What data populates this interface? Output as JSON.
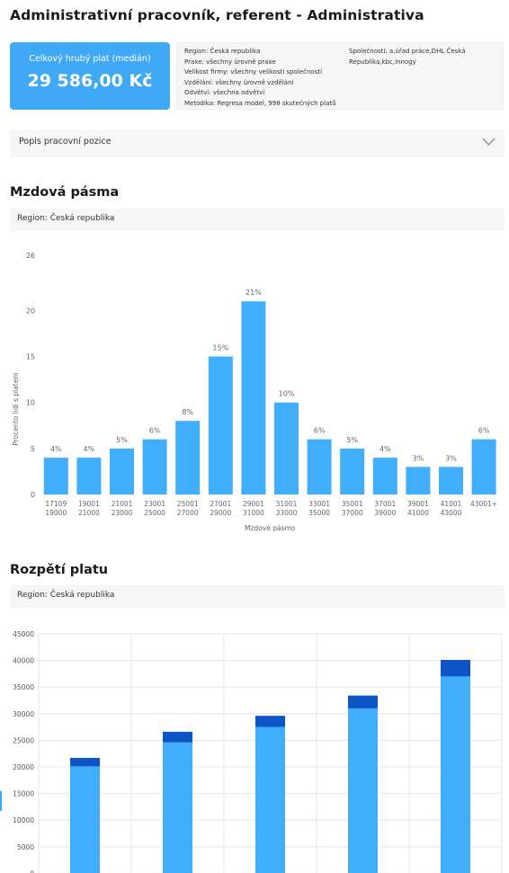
{
  "page": {
    "title": "Administrativní pracovník, referent - Administrativa"
  },
  "summary": {
    "median_label": "Celkový hrubý plat (medián)",
    "median_value": "29 586,00 Kč",
    "details_left": [
      "Region: Česká republika",
      "Praxe: všechny úrovně praxe",
      "Velikost firmy: všechny velikosti společností",
      "Vzdělání: všechny úrovně vzdělání",
      "Odvětví: všechna odvětví",
      "Metodika: Regresa model, 998 skutečných platů"
    ],
    "details_right": [
      "Společnosti: a,úřad práce,DHL Česká",
      "Republika,kbc,innogy"
    ]
  },
  "job_description": {
    "label": "Popis pracovní pozice",
    "icon": "chevron-down-icon"
  },
  "wage_bands": {
    "section_title": "Mzdová pásma",
    "region": "Region: Česká republika"
  },
  "salary_range": {
    "section_title": "Rozpětí platu",
    "region": "Region: Česká republika"
  },
  "colors": {
    "bar": "#40aefc",
    "bar_dark": "#0d55c6",
    "salary_box": "#3fa9f5",
    "panel": "#f6f6f6"
  },
  "chart_data": [
    {
      "type": "bar",
      "xlabel": "Mzdové pásmo",
      "ylabel": "Procento lidí s platem",
      "ylim": [
        0,
        26
      ],
      "yticks": [
        0,
        5,
        10,
        15,
        20,
        26
      ],
      "grid": false,
      "categories": [
        [
          "17109",
          "19000"
        ],
        [
          "19001",
          "21000"
        ],
        [
          "21001",
          "23000"
        ],
        [
          "23001",
          "25000"
        ],
        [
          "25001",
          "27000"
        ],
        [
          "27001",
          "29000"
        ],
        [
          "29001",
          "31000"
        ],
        [
          "31001",
          "33000"
        ],
        [
          "33001",
          "35000"
        ],
        [
          "35001",
          "37000"
        ],
        [
          "37001",
          "39000"
        ],
        [
          "39001",
          "41000"
        ],
        [
          "41001",
          "43000"
        ],
        [
          "43001+"
        ]
      ],
      "values": [
        4,
        4,
        5,
        6,
        8,
        15,
        21,
        10,
        6,
        5,
        4,
        3,
        3,
        6
      ],
      "labels": [
        "4%",
        "4%",
        "5%",
        "6%",
        "8%",
        "15%",
        "21%",
        "10%",
        "6%",
        "5%",
        "4%",
        "3%",
        "3%",
        "6%"
      ]
    },
    {
      "type": "bar",
      "stacked": true,
      "ylim": [
        0,
        45000
      ],
      "yticks": [
        0,
        5000,
        10000,
        15000,
        20000,
        25000,
        30000,
        35000,
        40000,
        45000
      ],
      "grid": true,
      "series": [
        {
          "values": [
            20100,
            24600,
            27500,
            31000,
            37000
          ]
        },
        {
          "values": [
            1600,
            2000,
            2100,
            2400,
            3100
          ]
        }
      ]
    }
  ]
}
